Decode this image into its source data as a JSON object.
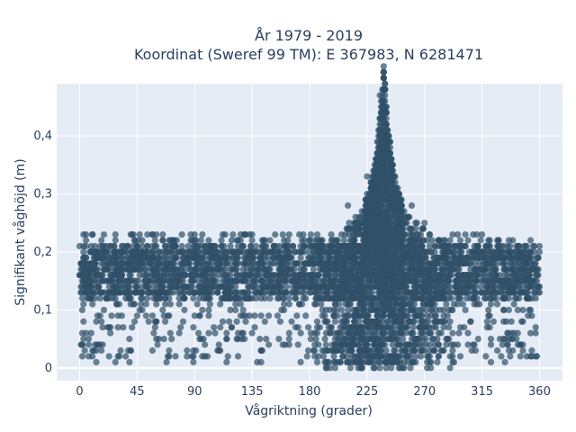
{
  "chart_data": {
    "type": "scatter",
    "title_line1": "År 1979 - 2019",
    "title_line2": "Koordinat (Sweref 99 TM): E 367983, N 6281471",
    "xlabel": "Vågriktning (grader)",
    "ylabel": "Signifikant våghöjd (m)",
    "xlim": [
      -18,
      378
    ],
    "ylim": [
      -0.022,
      0.49
    ],
    "x_ticks": [
      0,
      45,
      90,
      135,
      180,
      225,
      270,
      315,
      360
    ],
    "x_tick_labels": [
      "0",
      "45",
      "90",
      "135",
      "180",
      "225",
      "270",
      "315",
      "360"
    ],
    "y_ticks": [
      0,
      0.1,
      0.2,
      0.3,
      0.4
    ],
    "y_tick_labels": [
      "0",
      "0,1",
      "0,2",
      "0,3",
      "0,4"
    ],
    "grid": true,
    "marker_color": "#2f5068",
    "series_envelope": {
      "direction_range": [
        0,
        360
      ],
      "dense_band": [
        0.12,
        0.21
      ],
      "peak_direction": 238,
      "peak_height": 0.47,
      "typical_upper": 0.22,
      "occasional_max": 0.23
    },
    "sample_points": [
      {
        "x": 0,
        "y": 0.21
      },
      {
        "x": 5,
        "y": 0.23
      },
      {
        "x": 45,
        "y": 0.21
      },
      {
        "x": 90,
        "y": 0.21
      },
      {
        "x": 135,
        "y": 0.22
      },
      {
        "x": 180,
        "y": 0.22
      },
      {
        "x": 210,
        "y": 0.28
      },
      {
        "x": 225,
        "y": 0.33
      },
      {
        "x": 235,
        "y": 0.47
      },
      {
        "x": 238,
        "y": 0.45
      },
      {
        "x": 245,
        "y": 0.35
      },
      {
        "x": 260,
        "y": 0.28
      },
      {
        "x": 270,
        "y": 0.25
      },
      {
        "x": 315,
        "y": 0.23
      },
      {
        "x": 360,
        "y": 0.21
      },
      {
        "x": 230,
        "y": 0.0
      },
      {
        "x": 250,
        "y": 0.0
      },
      {
        "x": 10,
        "y": 0.02
      }
    ]
  },
  "colors": {
    "plot_background": "#e5ecf6",
    "grid": "#ffffff",
    "text": "#2a3f5f"
  }
}
